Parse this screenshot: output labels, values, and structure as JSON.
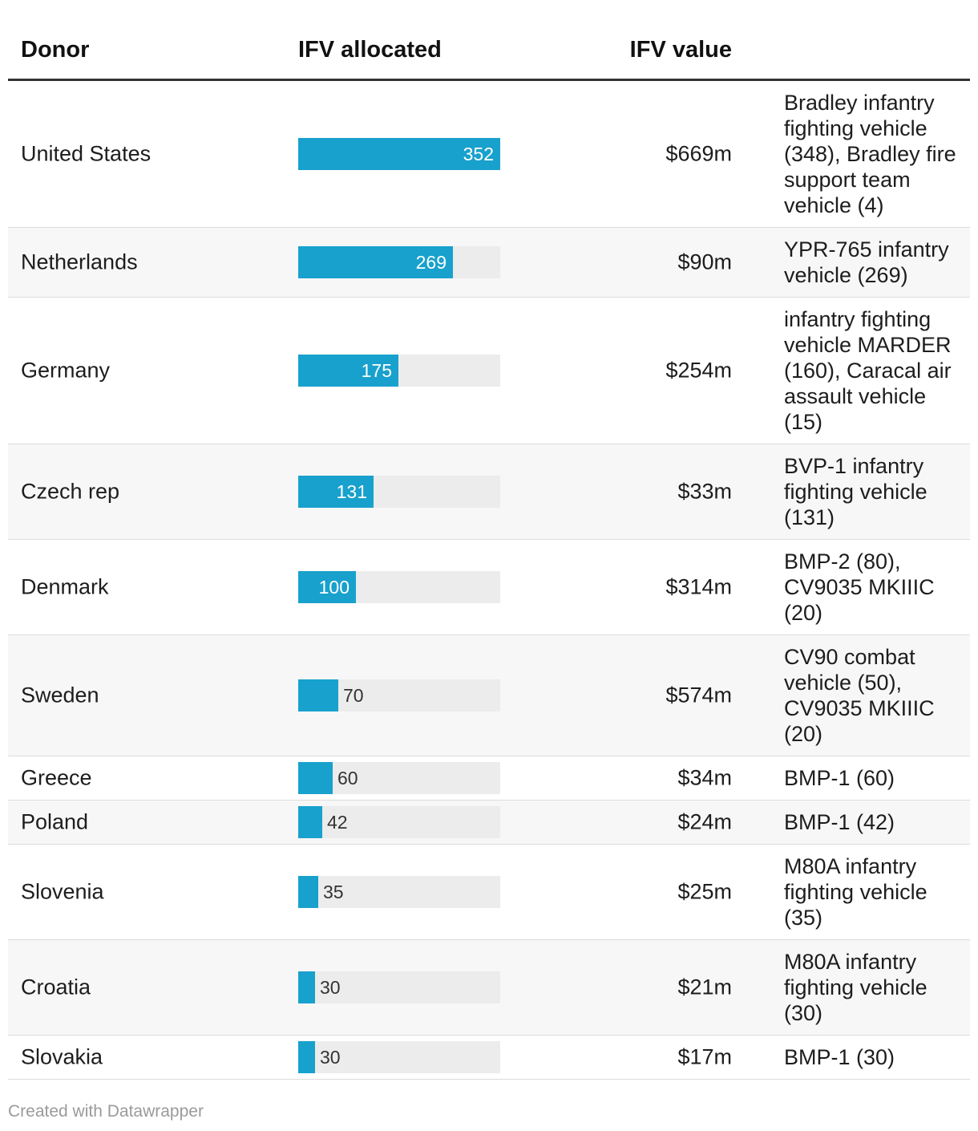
{
  "headers": {
    "donor": "Donor",
    "ifv_allocated": "IFV allocated",
    "ifv_value": "IFV value",
    "description": ""
  },
  "footer": "Created with Datawrapper",
  "colors": {
    "bar": "#18a1cd",
    "track": "#ececec",
    "alt_row": "#f7f7f7"
  },
  "chart_data": {
    "type": "table",
    "columns": [
      "Donor",
      "IFV allocated",
      "IFV value",
      ""
    ],
    "max_value": 352,
    "rows": [
      {
        "donor": "United States",
        "allocated": 352,
        "value": "$669m",
        "description": "Bradley infantry fighting vehicle (348), Bradley fire support team vehicle (4)"
      },
      {
        "donor": "Netherlands",
        "allocated": 269,
        "value": "$90m",
        "description": "YPR-765 infantry vehicle (269)"
      },
      {
        "donor": "Germany",
        "allocated": 175,
        "value": "$254m",
        "description": "infantry fighting vehicle MARDER (160), Caracal air assault vehicle (15)"
      },
      {
        "donor": "Czech rep",
        "allocated": 131,
        "value": "$33m",
        "description": "BVP-1 infantry fighting vehicle (131)"
      },
      {
        "donor": "Denmark",
        "allocated": 100,
        "value": "$314m",
        "description": "BMP-2 (80), CV9035 MKIIIC (20)"
      },
      {
        "donor": "Sweden",
        "allocated": 70,
        "value": "$574m",
        "description": "CV90 combat vehicle (50), CV9035 MKIIIC (20)"
      },
      {
        "donor": "Greece",
        "allocated": 60,
        "value": "$34m",
        "description": "BMP-1 (60)"
      },
      {
        "donor": "Poland",
        "allocated": 42,
        "value": "$24m",
        "description": "BMP-1 (42)"
      },
      {
        "donor": "Slovenia",
        "allocated": 35,
        "value": "$25m",
        "description": "M80A infantry fighting vehicle (35)"
      },
      {
        "donor": "Croatia",
        "allocated": 30,
        "value": "$21m",
        "description": "M80A infantry fighting vehicle (30)"
      },
      {
        "donor": "Slovakia",
        "allocated": 30,
        "value": "$17m",
        "description": "BMP-1 (30)"
      }
    ]
  }
}
